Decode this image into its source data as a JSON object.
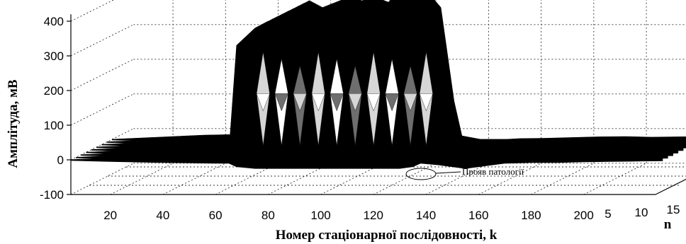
{
  "chart_data": {
    "type": "surface-3d",
    "xlabel": "Номер стаціонарної послідовності, k",
    "ylabel": "Амплітуда, мВ",
    "zlabel": "n",
    "x_ticks": [
      20,
      40,
      60,
      80,
      100,
      120,
      140,
      160,
      180,
      200
    ],
    "y_ticks": [
      400,
      300,
      200,
      100,
      0,
      -100
    ],
    "n_ticks": [
      5,
      10,
      15
    ],
    "x_range": [
      5,
      230
    ],
    "y_range": [
      -100,
      420
    ],
    "n_range": [
      0,
      17
    ],
    "grid": true,
    "series": [
      {
        "x": [
          5,
          20,
          40,
          60,
          65,
          68,
          75,
          80,
          85,
          95,
          100,
          105,
          112,
          115,
          120,
          125,
          130,
          135,
          138,
          145,
          150,
          155,
          160,
          170,
          180,
          190,
          200,
          210,
          220,
          230
        ],
        "upper": [
          0,
          5,
          12,
          15,
          15,
          330,
          380,
          400,
          380,
          410,
          400,
          410,
          390,
          420,
          400,
          425,
          380,
          110,
          10,
          0,
          0,
          0,
          2,
          3,
          5,
          7,
          8,
          6,
          7,
          8
        ],
        "lower": [
          -2,
          -5,
          -8,
          -10,
          -10,
          -20,
          -25,
          -25,
          -25,
          -25,
          -25,
          -25,
          -25,
          -25,
          -25,
          -25,
          -25,
          -20,
          -10,
          -15,
          -20,
          -25,
          -20,
          -10,
          -8,
          -8,
          -6,
          -5,
          -4,
          -3
        ]
      }
    ],
    "annotations": [
      {
        "text": "Прояв патології",
        "x": 150,
        "y": -20
      }
    ],
    "colors": {
      "surface_dark": "#000000",
      "surface_mid": "#6e6e6e",
      "surface_light": "#d6d6d6",
      "surface_white": "#ffffff",
      "grid": "#333333"
    }
  }
}
